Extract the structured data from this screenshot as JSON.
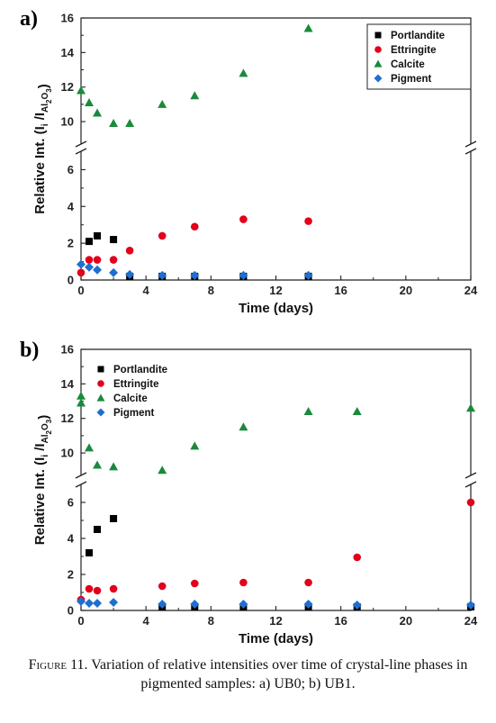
{
  "caption": {
    "label": "Figure 11.",
    "text": "Variation of relative intensities over time of crystal-line phases in pigmented samples: a) UB0; b) UB1."
  },
  "chart_data": [
    {
      "panel_label": "a)",
      "type": "scatter",
      "xlabel": "Time (days)",
      "ylabel": "Relative Int. (Ii /IAl2O3)",
      "ylabel_parts": {
        "main": "Relative Int. (I",
        "sub1": "i",
        "mid": " /I",
        "sub2": "Al",
        "sub3": "2",
        "sub4": "O",
        "sub5": "3",
        "end": ")"
      },
      "xlim": [
        0,
        24
      ],
      "xticks": [
        0,
        4,
        8,
        12,
        16,
        20,
        24
      ],
      "ylim_lower": [
        0,
        7
      ],
      "yticks_lower": [
        0,
        2,
        4,
        6
      ],
      "ylim_upper": [
        8.7,
        16
      ],
      "yticks_upper": [
        10,
        12,
        14,
        16
      ],
      "axis_break": true,
      "legend_position": "top-right",
      "series": [
        {
          "name": "Portlandite",
          "marker": "square",
          "color": "#000000",
          "x": [
            0.5,
            1,
            2,
            3,
            5,
            7,
            10,
            14
          ],
          "y": [
            2.1,
            2.4,
            2.2,
            0.2,
            0.2,
            0.2,
            0.2,
            0.2
          ]
        },
        {
          "name": "Ettringite",
          "marker": "circle",
          "color": "#e3001b",
          "x": [
            0,
            0.5,
            1,
            2,
            3,
            5,
            7,
            10,
            14
          ],
          "y": [
            0.4,
            1.1,
            1.1,
            1.1,
            1.6,
            2.4,
            2.9,
            3.3,
            3.2
          ]
        },
        {
          "name": "Calcite",
          "marker": "triangle",
          "color": "#1a8a3c",
          "x": [
            0,
            0.5,
            1,
            2,
            3,
            5,
            7,
            10,
            14
          ],
          "y": [
            11.8,
            11.1,
            10.5,
            9.9,
            9.9,
            11.0,
            11.5,
            12.8,
            15.4
          ]
        },
        {
          "name": "Pigment",
          "marker": "diamond",
          "color": "#1f6fd0",
          "x": [
            0,
            0.5,
            1,
            2,
            3,
            5,
            7,
            10,
            14
          ],
          "y": [
            0.85,
            0.7,
            0.55,
            0.4,
            0.3,
            0.25,
            0.25,
            0.25,
            0.25
          ]
        }
      ]
    },
    {
      "panel_label": "b)",
      "type": "scatter",
      "xlabel": "Time (days)",
      "ylabel": "Relative Int. (Ii /IAl2O3)",
      "ylabel_parts": {
        "main": "Relative Int. (I",
        "sub1": "i",
        "mid": " /I",
        "sub2": "Al",
        "sub3": "2",
        "sub4": "O",
        "sub5": "3",
        "end": ")"
      },
      "xlim": [
        0,
        24
      ],
      "xticks": [
        0,
        4,
        8,
        12,
        16,
        20,
        24
      ],
      "ylim_lower": [
        0,
        7
      ],
      "yticks_lower": [
        0,
        2,
        4,
        6
      ],
      "ylim_upper": [
        8.7,
        16
      ],
      "yticks_upper": [
        10,
        12,
        14,
        16
      ],
      "axis_break": true,
      "legend_position": "top-left",
      "series": [
        {
          "name": "Portlandite",
          "marker": "square",
          "color": "#000000",
          "x": [
            0.5,
            1,
            2,
            5,
            7,
            10,
            14,
            17,
            24
          ],
          "y": [
            3.2,
            4.5,
            5.1,
            0.2,
            0.2,
            0.2,
            0.2,
            0.2,
            0.2
          ]
        },
        {
          "name": "Ettringite",
          "marker": "circle",
          "color": "#e3001b",
          "x": [
            0,
            0.5,
            1,
            2,
            5,
            7,
            10,
            14,
            17,
            24
          ],
          "y": [
            0.6,
            1.2,
            1.1,
            1.2,
            1.35,
            1.5,
            1.55,
            1.55,
            2.95,
            6.0
          ]
        },
        {
          "name": "Calcite",
          "marker": "triangle",
          "color": "#1a8a3c",
          "x": [
            0,
            0,
            0.5,
            1,
            2,
            5,
            7,
            10,
            14,
            17,
            24
          ],
          "y": [
            13.3,
            12.9,
            10.3,
            9.3,
            9.2,
            9.0,
            10.4,
            11.5,
            12.4,
            12.4,
            12.6
          ]
        },
        {
          "name": "Pigment",
          "marker": "diamond",
          "color": "#1f6fd0",
          "x": [
            0,
            0.5,
            1,
            2,
            5,
            7,
            10,
            14,
            17,
            24
          ],
          "y": [
            0.5,
            0.4,
            0.4,
            0.45,
            0.35,
            0.35,
            0.35,
            0.35,
            0.3,
            0.3
          ]
        }
      ]
    }
  ]
}
